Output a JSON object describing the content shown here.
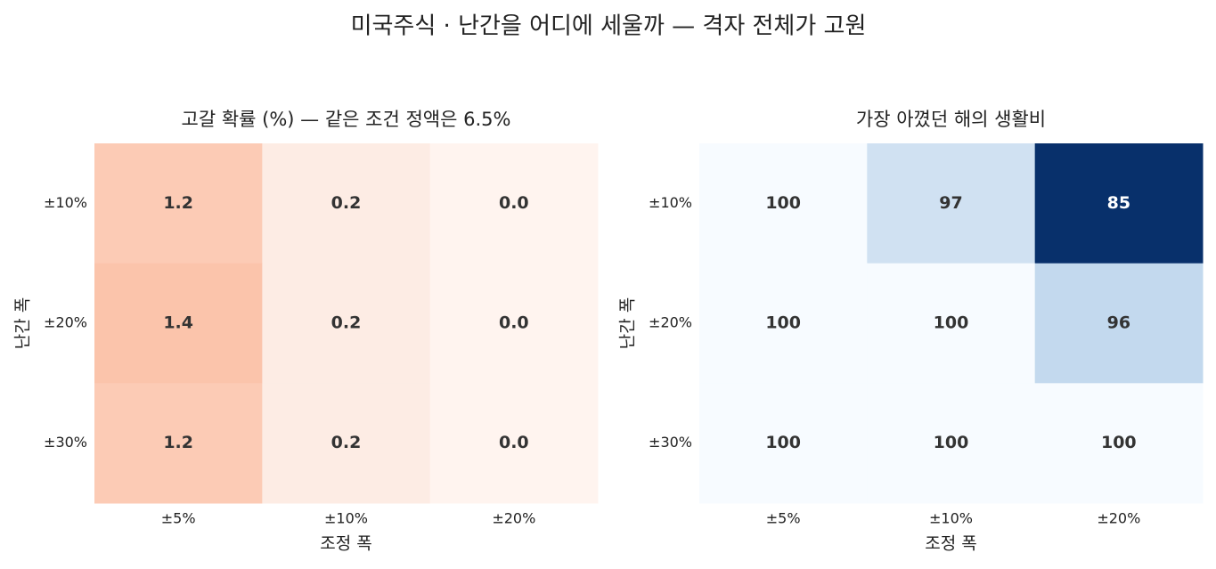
{
  "title": "미국주식 · 난간을 어디에 세울까 — 격자 전체가 고원",
  "chart_data": [
    {
      "type": "heatmap",
      "title": "고갈 확률 (%) — 같은 조건 정액은 6.5%",
      "xlabel": "조정 폭",
      "ylabel": "난간 폭",
      "x": [
        "±5%",
        "±10%",
        "±20%"
      ],
      "y": [
        "±10%",
        "±20%",
        "±30%"
      ],
      "values": [
        [
          1.2,
          0.2,
          0.0
        ],
        [
          1.4,
          0.2,
          0.0
        ],
        [
          1.2,
          0.2,
          0.0
        ]
      ],
      "value_labels": [
        [
          "1.2",
          "0.2",
          "0.0"
        ],
        [
          "1.4",
          "0.2",
          "0.0"
        ],
        [
          "1.2",
          "0.2",
          "0.0"
        ]
      ],
      "colors": [
        [
          "#fccbb5",
          "#fdece4",
          "#fff4ef"
        ],
        [
          "#fbc4ab",
          "#fdece4",
          "#fff4ef"
        ],
        [
          "#fccbb5",
          "#fdece4",
          "#fff4ef"
        ]
      ]
    },
    {
      "type": "heatmap",
      "title": "가장 아꼈던 해의 생활비",
      "xlabel": "조정 폭",
      "ylabel": "난간 폭",
      "x": [
        "±5%",
        "±10%",
        "±20%"
      ],
      "y": [
        "±10%",
        "±20%",
        "±30%"
      ],
      "values": [
        [
          100,
          97,
          85
        ],
        [
          100,
          100,
          96
        ],
        [
          100,
          100,
          100
        ]
      ],
      "colors": [
        [
          "#f7fbff",
          "#d0e1f2",
          "#08306b"
        ],
        [
          "#f7fbff",
          "#f7fbff",
          "#c3d9ee"
        ],
        [
          "#f7fbff",
          "#f7fbff",
          "#f7fbff"
        ]
      ]
    }
  ]
}
